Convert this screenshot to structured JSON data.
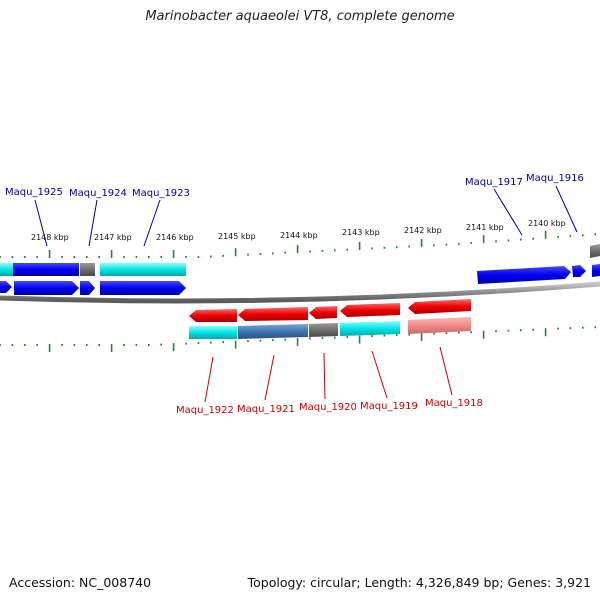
{
  "title": "Marinobacter aquaeolei VT8, complete genome",
  "footer": {
    "accession": "Accession: NC_008740",
    "summary": "Topology: circular; Length: 4,326,849 bp; Genes: 3,921"
  },
  "colors": {
    "forward_label": "#0000aa",
    "reverse_label": "#cc0000",
    "tick": "#1f8a1f",
    "backbone": "#8c8c8c"
  },
  "scale_labels": [
    "2148 kbp",
    "2147 kbp",
    "2146 kbp",
    "2145 kbp",
    "2144 kbp",
    "2143 kbp",
    "2142 kbp",
    "2141 kbp",
    "2140 kbp"
  ],
  "forward_genes": [
    {
      "label": "Maqu_1925"
    },
    {
      "label": "Maqu_1924"
    },
    {
      "label": "Maqu_1923"
    },
    {
      "label": "Maqu_1917"
    },
    {
      "label": "Maqu_1916"
    }
  ],
  "reverse_genes": [
    {
      "label": "Maqu_1922"
    },
    {
      "label": "Maqu_1921"
    },
    {
      "label": "Maqu_1920"
    },
    {
      "label": "Maqu_1919"
    },
    {
      "label": "Maqu_1918"
    }
  ]
}
